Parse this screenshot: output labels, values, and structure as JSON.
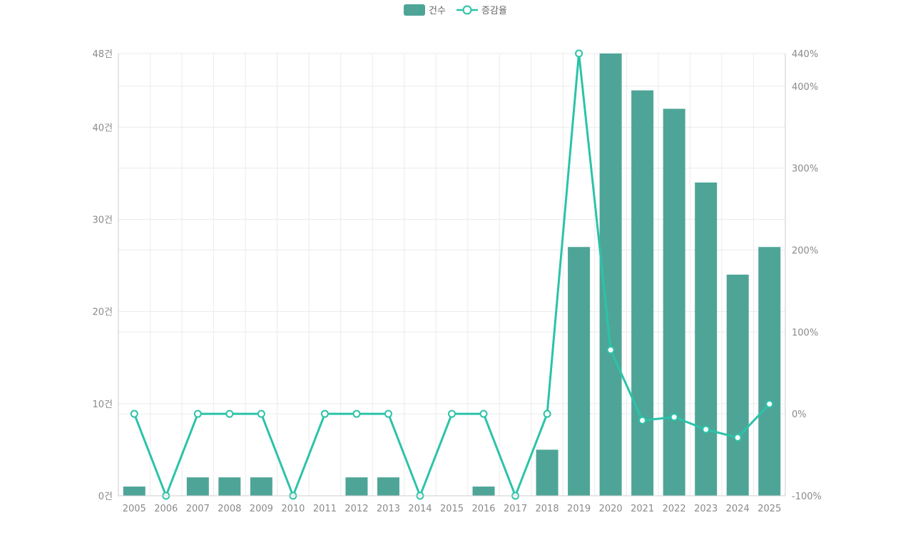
{
  "chart_data": {
    "type": "bar",
    "categories": [
      "2005",
      "2006",
      "2007",
      "2008",
      "2009",
      "2010",
      "2011",
      "2012",
      "2013",
      "2014",
      "2015",
      "2016",
      "2017",
      "2018",
      "2019",
      "2020",
      "2021",
      "2022",
      "2023",
      "2024",
      "2025"
    ],
    "series": [
      {
        "name": "건수",
        "type": "bar",
        "axis": "left",
        "color": "#4ea597",
        "values": [
          1,
          0,
          2,
          2,
          2,
          0,
          0,
          2,
          2,
          0,
          0,
          1,
          0,
          5,
          27,
          48,
          44,
          42,
          34,
          24,
          27
        ]
      },
      {
        "name": "증감율",
        "type": "line",
        "axis": "right",
        "color": "#2bc3a8",
        "values": [
          0,
          -100,
          0,
          0,
          0,
          -100,
          0,
          0,
          0,
          -100,
          0,
          0,
          -100,
          0,
          440,
          78,
          -8,
          -4,
          -19,
          -29,
          12
        ]
      }
    ],
    "y_left": {
      "ylim": [
        0,
        48
      ],
      "ticks": [
        0,
        10,
        20,
        30,
        40,
        48
      ],
      "tick_labels": [
        "0건",
        "10건",
        "20건",
        "30건",
        "40건",
        "48건"
      ]
    },
    "y_right": {
      "ylim": [
        -100,
        440
      ],
      "ticks": [
        -100,
        0,
        100,
        200,
        300,
        400,
        440
      ],
      "tick_labels": [
        "-100%",
        "0%",
        "100%",
        "200%",
        "300%",
        "400%",
        "440%"
      ]
    },
    "legend": {
      "position": "top-center",
      "entries": [
        "건수",
        "증감율"
      ]
    },
    "grid": true
  }
}
